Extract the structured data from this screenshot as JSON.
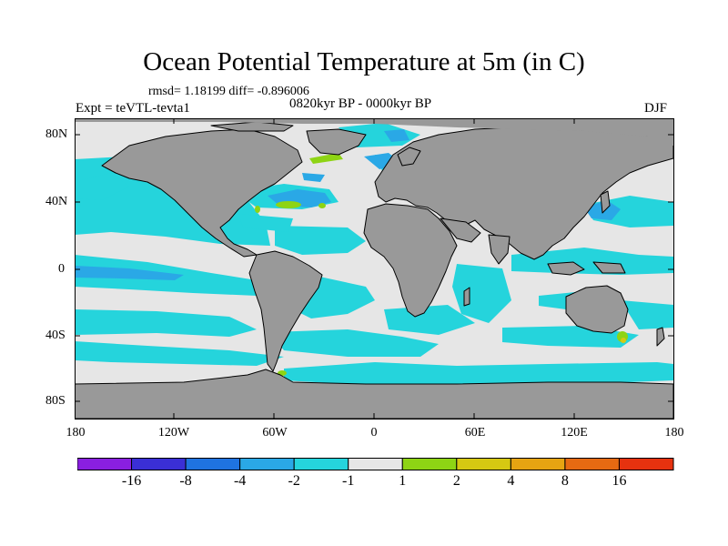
{
  "header": {
    "title": "Ocean Potential Temperature at 5m (in C)",
    "stats": "rmsd= 1.18199 diff= -0.896006",
    "period": "0820kyr BP - 0000kyr BP",
    "experiment": "Expt = teVTL-tevta1",
    "season": "DJF"
  },
  "axes": {
    "y_ticks": [
      "80N",
      "40N",
      "0",
      "40S",
      "80S"
    ],
    "x_ticks": [
      "180",
      "120W",
      "60W",
      "0",
      "60E",
      "120E",
      "180"
    ]
  },
  "colorbar": {
    "labels": [
      "-16",
      "-8",
      "-4",
      "-2",
      "-1",
      "1",
      "2",
      "4",
      "8",
      "16"
    ],
    "colors": [
      "#8a1fe0",
      "#3a2fd6",
      "#1f73e0",
      "#2aa8e6",
      "#25d4dc",
      "#e6e6e6",
      "#8ed414",
      "#d6c812",
      "#e6a412",
      "#e66a12",
      "#e6320f"
    ]
  },
  "map_colors": {
    "ocean_background": "#e6e6e6",
    "land": "#999999",
    "minus_1": "#25d4dc",
    "minus_2": "#2aa8e6",
    "plus_1": "#8ed414",
    "plus_2": "#d6c812"
  }
}
